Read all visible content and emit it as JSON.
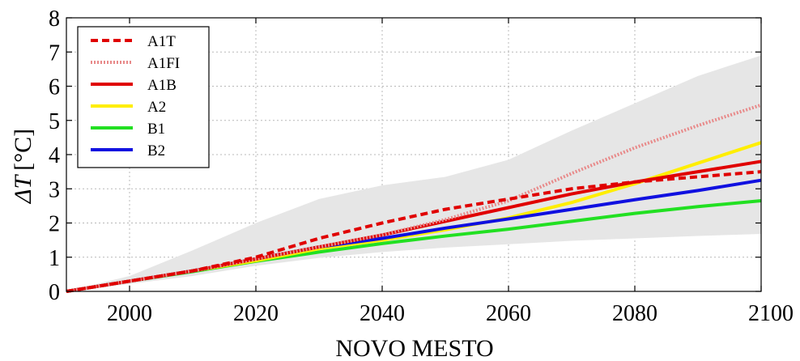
{
  "chart_data": {
    "type": "line",
    "xlabel": "NOVO MESTO",
    "ylabel": "ΔT [°C]",
    "ylabel_symbol": "ΔT",
    "ylabel_unit": "[°C]",
    "xlim": [
      1990,
      2100
    ],
    "ylim": [
      0,
      8
    ],
    "xticks": [
      2000,
      2020,
      2040,
      2060,
      2080,
      2100
    ],
    "yticks": [
      0,
      1,
      2,
      3,
      4,
      5,
      6,
      7,
      8
    ],
    "grid": true,
    "legend_position": "top-left",
    "x": [
      1990,
      2000,
      2010,
      2020,
      2030,
      2040,
      2050,
      2060,
      2070,
      2080,
      2090,
      2100
    ],
    "envelope": {
      "upper": [
        0,
        0.45,
        1.2,
        2.0,
        2.7,
        3.1,
        3.35,
        3.85,
        4.7,
        5.5,
        6.3,
        6.9
      ],
      "lower": [
        0,
        0.22,
        0.45,
        0.75,
        0.98,
        1.15,
        1.28,
        1.38,
        1.48,
        1.55,
        1.62,
        1.68
      ],
      "color": "#e6e6e6"
    },
    "series": [
      {
        "name": "A1T",
        "color": "#e00000",
        "style": "dashed",
        "values": [
          0,
          0.3,
          0.6,
          1.0,
          1.55,
          2.0,
          2.4,
          2.7,
          3.0,
          3.2,
          3.35,
          3.5
        ]
      },
      {
        "name": "A1FI",
        "color": "#e88a8a",
        "style": "dotted",
        "values": [
          0,
          0.3,
          0.6,
          0.95,
          1.3,
          1.65,
          2.1,
          2.65,
          3.45,
          4.2,
          4.85,
          5.45
        ]
      },
      {
        "name": "A1B",
        "color": "#e00000",
        "style": "solid",
        "values": [
          0,
          0.3,
          0.6,
          0.95,
          1.3,
          1.65,
          2.05,
          2.45,
          2.85,
          3.2,
          3.5,
          3.8
        ]
      },
      {
        "name": "A2",
        "color": "#ffee00",
        "style": "solid",
        "values": [
          0,
          0.3,
          0.6,
          0.9,
          1.25,
          1.5,
          1.8,
          2.15,
          2.6,
          3.15,
          3.75,
          4.35
        ]
      },
      {
        "name": "B1",
        "color": "#22e022",
        "style": "solid",
        "values": [
          0,
          0.3,
          0.58,
          0.88,
          1.15,
          1.4,
          1.62,
          1.82,
          2.05,
          2.28,
          2.48,
          2.65
        ]
      },
      {
        "name": "B2",
        "color": "#1010e0",
        "style": "solid",
        "values": [
          0,
          0.3,
          0.6,
          0.95,
          1.3,
          1.55,
          1.85,
          2.12,
          2.4,
          2.68,
          2.95,
          3.25
        ]
      }
    ]
  }
}
